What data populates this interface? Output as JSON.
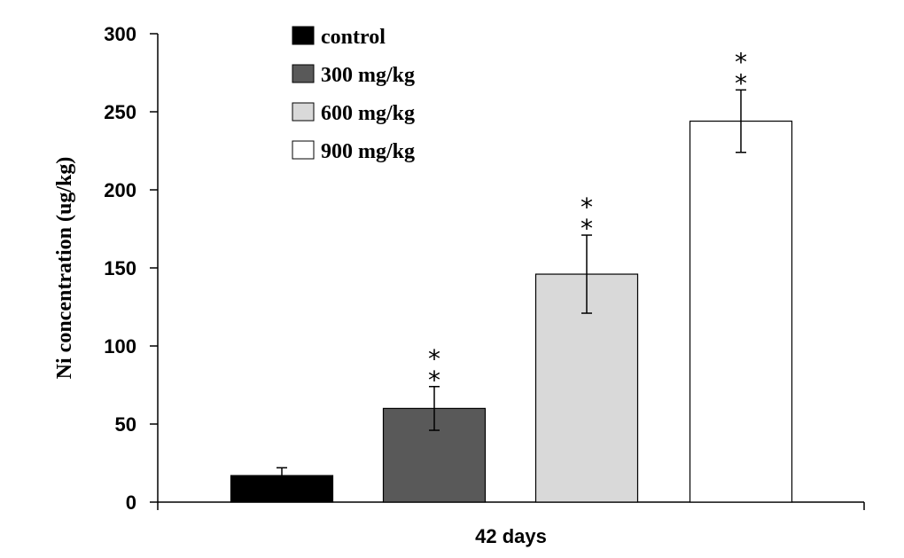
{
  "chart_data": {
    "type": "bar",
    "title": "",
    "xlabel": "42 days",
    "ylabel": "Ni concentration (ug/kg)",
    "ylim": [
      0,
      300
    ],
    "yticks": [
      0,
      50,
      100,
      150,
      200,
      250,
      300
    ],
    "grid": false,
    "legend_position": "top-left",
    "categories": [
      "42 days"
    ],
    "series": [
      {
        "name": "control",
        "values": [
          17
        ],
        "error": [
          5
        ],
        "annotation": "",
        "color": "#000000"
      },
      {
        "name": "300 mg/kg",
        "values": [
          60
        ],
        "error": [
          14
        ],
        "annotation": "**",
        "color": "#595959"
      },
      {
        "name": "600 mg/kg",
        "values": [
          146
        ],
        "error": [
          25
        ],
        "annotation": "**",
        "color": "#d9d9d9"
      },
      {
        "name": "900 mg/kg",
        "values": [
          244
        ],
        "error": [
          20
        ],
        "annotation": "**",
        "color": "#ffffff"
      }
    ]
  }
}
